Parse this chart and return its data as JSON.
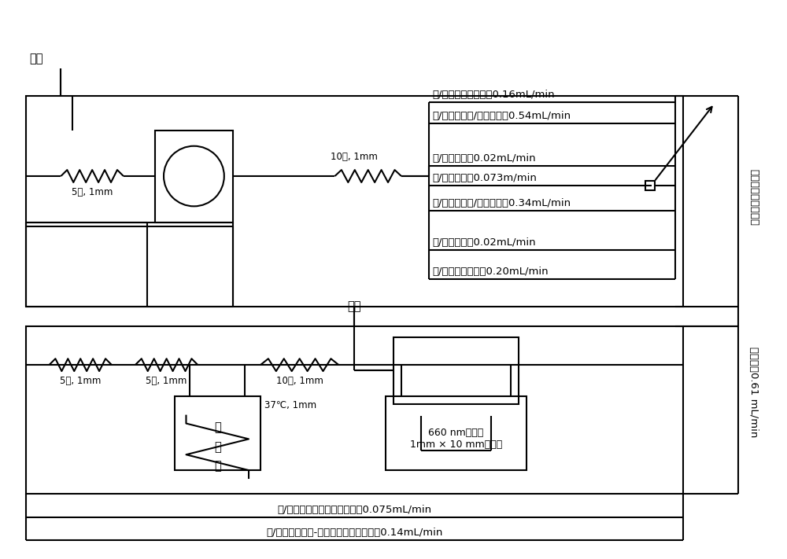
{
  "background": "#ffffff",
  "line_color": "#000000",
  "line_width": 1.5,
  "font_size": 9.5,
  "labels": {
    "waste_top": "废液",
    "waste_mid": "废液",
    "coil_top": "5匹, 1mm",
    "coil_bot1": "5匹, 1mm",
    "coil_bot2": "5匹, 1mm",
    "coil_bot3": "10匹, 1mm",
    "coil_upper_right": "10匹, 1mm",
    "heater_temp": "37℃, 1mm",
    "heater1": "加",
    "heater2": "热",
    "heater3": "槽",
    "line1": "橙/橙，空气加速管，0.16mL/min",
    "line2": "黄/蓝，氯化钠/硫酸溶液，0.54mL/min",
    "line3": "橙/蓝，空气，0.02mL/min",
    "line4": "红/红，样品，0.073m/min",
    "line5": "黄/蓝，氯化钠/硫酸溶液，0.34mL/min",
    "line6": "橙/黄，空气，0.02mL/min",
    "line7": "橙/蓝，缓冲溶液，0.20mL/min",
    "line8": "橙/蓝，二氯异氰尿酸钠溶液，0.075mL/min",
    "line9": "黑/黑，水杨酸钠-亚硝基铁氰化钠溶液，0.14mL/min",
    "detector": "660 nm滤光片\n1mm × 10 mm流动池",
    "right_top": "取样器的在线清洗槽",
    "right_mid": "针洗液，0.61 mL/min"
  }
}
